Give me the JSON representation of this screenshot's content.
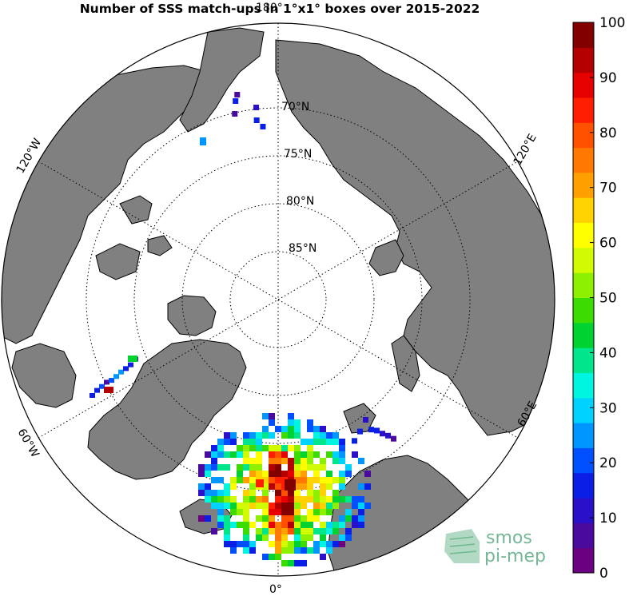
{
  "title": "Number of SSS match-ups in 1°x1° boxes over 2015-2022",
  "map": {
    "projection": "north polar stereographic",
    "colors": {
      "land": "#808080",
      "ocean": "#ffffff",
      "coast": "#000000"
    },
    "lat_labels": [
      "70°N",
      "75°N",
      "80°N",
      "85°N"
    ],
    "lon_labels": {
      "top": "180°",
      "bottom": "0°",
      "left_upper": "120°W",
      "left_lower": "60°W",
      "right_upper": "120°E",
      "right_lower": "60°E"
    }
  },
  "colorbar": {
    "min": 0,
    "max": 100,
    "ticks": [
      "0",
      "10",
      "20",
      "30",
      "40",
      "50",
      "60",
      "70",
      "80",
      "90",
      "100"
    ],
    "colors": [
      "#6b0080",
      "#4b0a9e",
      "#2a10c8",
      "#0a1ee6",
      "#0050ff",
      "#0096ff",
      "#00d2ff",
      "#00f5e0",
      "#00e68c",
      "#00d232",
      "#3cdc00",
      "#8cf000",
      "#d2fa00",
      "#ffff00",
      "#ffd200",
      "#ffa000",
      "#ff7800",
      "#ff5000",
      "#ff1e00",
      "#e60000",
      "#b40000",
      "#820000"
    ]
  },
  "logo": {
    "line1": "smos",
    "line2": "pi-mep"
  }
}
